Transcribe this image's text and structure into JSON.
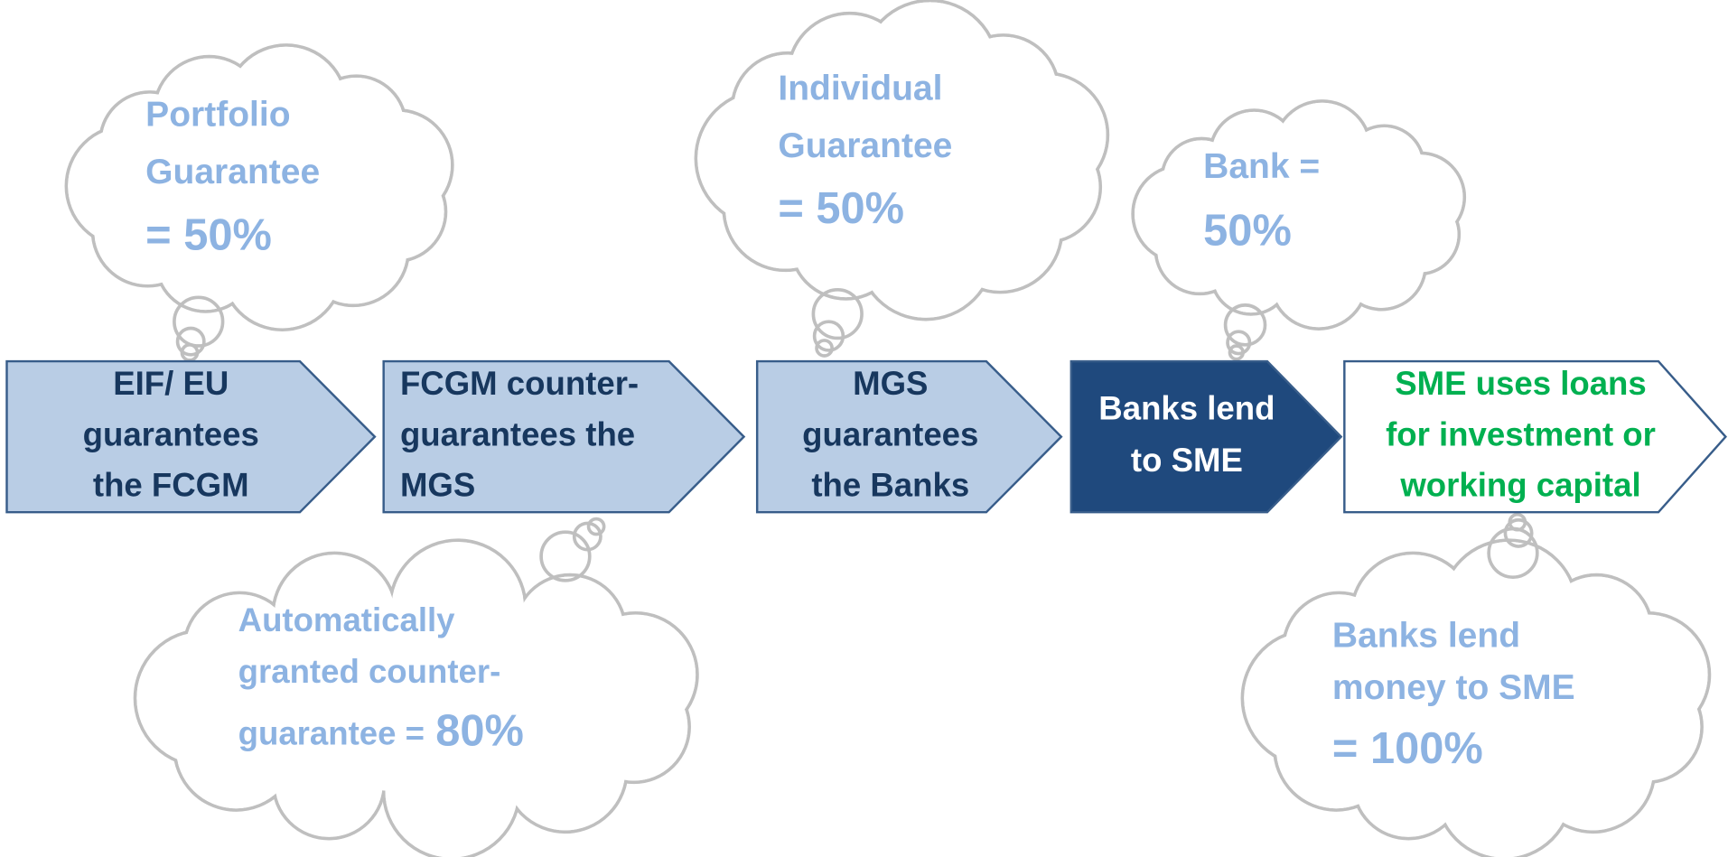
{
  "steps": [
    {
      "lines": [
        "EIF/ EU",
        "guarantees",
        "the FCGM"
      ]
    },
    {
      "lines": [
        "FCGM counter-",
        "guarantees the",
        "MGS"
      ]
    },
    {
      "lines": [
        "MGS",
        "guarantees",
        "the Banks"
      ]
    },
    {
      "lines": [
        "Banks lend",
        "to SME"
      ]
    },
    {
      "lines": [
        "SME uses loans",
        "for investment or",
        "working capital"
      ]
    }
  ],
  "clouds": [
    {
      "lines": [
        "Portfolio",
        "Guarantee"
      ],
      "value": "= 50%"
    },
    {
      "lines": [
        "Individual",
        "Guarantee"
      ],
      "value": "= 50%"
    },
    {
      "lines": [
        "Bank ="
      ],
      "value": "50%"
    },
    {
      "lines": [
        "Automatically",
        "granted counter-",
        "guarantee ="
      ],
      "value": "80%"
    },
    {
      "lines": [
        "Banks lend",
        "money to SME"
      ],
      "value": "= 100%"
    }
  ]
}
